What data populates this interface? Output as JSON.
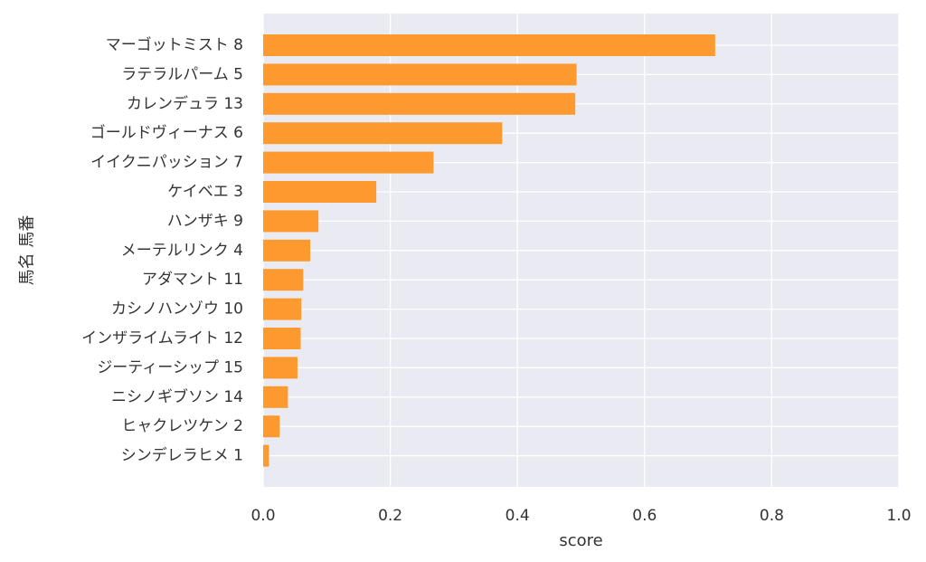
{
  "chart_data": {
    "type": "bar",
    "orientation": "horizontal",
    "categories": [
      "マーゴットミスト 8",
      "ラテラルパーム 5",
      "カレンデュラ 13",
      "ゴールドヴィーナス 6",
      "イイクニパッション 7",
      "ケイベエ 3",
      "ハンザキ 9",
      "メーテルリンク 4",
      "アダマント 11",
      "カシノハンゾウ 10",
      "インザライムライト 12",
      "ジーティーシップ 15",
      "ニシノギブソン 14",
      "ヒャクレツケン 2",
      "シンデレラヒメ 1"
    ],
    "values": [
      0.711,
      0.493,
      0.491,
      0.376,
      0.268,
      0.178,
      0.087,
      0.074,
      0.063,
      0.06,
      0.059,
      0.054,
      0.039,
      0.026,
      0.009
    ],
    "xlabel": "score",
    "ylabel": "馬名 馬番",
    "xlim": [
      0.0,
      1.0
    ],
    "xticks": [
      "0.0",
      "0.2",
      "0.4",
      "0.6",
      "0.8",
      "1.0"
    ],
    "grid": true,
    "bar_color": "#fc9a2f",
    "background_color": "#eaeaf2",
    "grid_color": "#ffffff"
  }
}
